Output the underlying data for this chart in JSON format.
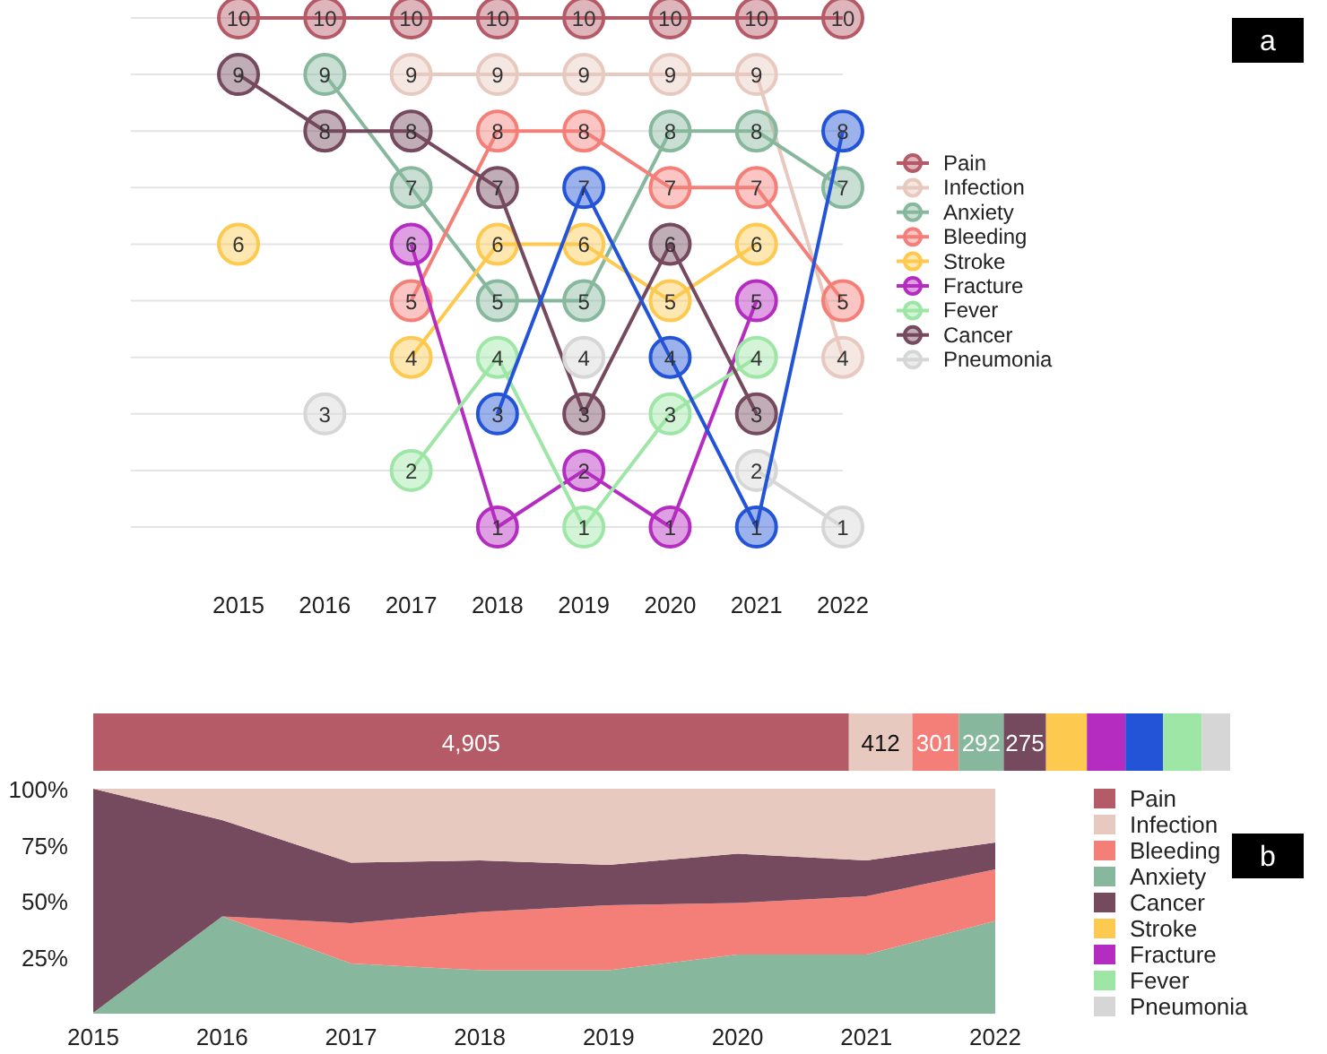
{
  "chart_data": [
    {
      "type": "line",
      "categories": [
        "2015",
        "2016",
        "2017",
        "2018",
        "2019",
        "2020",
        "2021",
        "2022"
      ],
      "yticks": [
        {
          "value": 1,
          "label": null
        },
        {
          "value": 2,
          "label": null
        },
        {
          "value": 3,
          "label": null
        },
        {
          "value": 4,
          "label": null
        },
        {
          "value": 5,
          "label": null
        },
        {
          "value": 6,
          "label": null
        },
        {
          "value": 7,
          "label": null
        },
        {
          "value": 8,
          "label": null
        },
        {
          "value": 9,
          "label": null
        },
        {
          "value": 10,
          "label": null
        }
      ],
      "grid": "y",
      "tick_labels": "x",
      "marker": "circle",
      "data_labels": true,
      "legend": "right",
      "annotations": [
        "a"
      ],
      "series": [
        {
          "name": "Pain",
          "color": "#b55a67",
          "values": [
            10,
            10,
            10,
            10,
            10,
            10,
            10,
            10
          ]
        },
        {
          "name": "Infection",
          "color": "#e8c9bf",
          "values": [
            null,
            null,
            9,
            9,
            9,
            9,
            9,
            4
          ]
        },
        {
          "name": "Anxiety",
          "color": "#87b89d",
          "values": [
            null,
            9,
            7,
            5,
            5,
            8,
            8,
            7
          ]
        },
        {
          "name": "Bleeding",
          "color": "#f47f78",
          "values": [
            null,
            null,
            5,
            8,
            8,
            7,
            7,
            5
          ]
        },
        {
          "name": "Stroke",
          "color": "#fdc94f",
          "values": [
            6,
            null,
            4,
            6,
            6,
            5,
            6,
            null
          ]
        },
        {
          "name": "Fracture",
          "color": "#b52cc0",
          "values": [
            null,
            null,
            6,
            1,
            2,
            1,
            5,
            null
          ]
        },
        {
          "name": "Fever",
          "color": "#9ee6a6",
          "values": [
            null,
            null,
            2,
            4,
            1,
            3,
            4,
            null
          ]
        },
        {
          "name": "Cancer",
          "color": "#764a5e",
          "values": [
            9,
            8,
            8,
            7,
            3,
            6,
            3,
            null
          ]
        },
        {
          "name": "Pneumonia",
          "color": "#d6d6d6",
          "values": [
            null,
            3,
            null,
            null,
            4,
            null,
            2,
            1
          ]
        },
        {
          "color": "#2354d8",
          "values": [
            null,
            null,
            null,
            3,
            7,
            4,
            1,
            8
          ]
        }
      ]
    },
    {
      "type": "bar",
      "orientation": "horizontal",
      "stacked": true,
      "categories": [
        null
      ],
      "tick_labels": false,
      "legend": "bottom right",
      "series": [
        {
          "name": "Pain",
          "color": "#b55a67",
          "values": [
            4905
          ],
          "value_labels": [
            "4,905"
          ]
        },
        {
          "name": "Infection",
          "color": "#e8c9bf",
          "values": [
            412
          ],
          "value_labels": [
            "412"
          ]
        },
        {
          "name": "Bleeding",
          "color": "#f47f78",
          "values": [
            301
          ],
          "value_labels": [
            "301"
          ]
        },
        {
          "name": "Anxiety",
          "color": "#87b89d",
          "values": [
            292
          ],
          "value_labels": [
            "292"
          ]
        },
        {
          "name": "Cancer",
          "color": "#764a5e",
          "values": [
            275
          ],
          "value_labels": [
            "275"
          ]
        },
        {
          "name": "Stroke",
          "color": "#fdc94f",
          "values": [
            265
          ]
        },
        {
          "name": "Fracture",
          "color": "#b52cc0",
          "values": [
            250
          ]
        },
        {
          "color": "#2354d8",
          "values": [
            245
          ]
        },
        {
          "name": "Fever",
          "color": "#9ee6a6",
          "values": [
            250
          ]
        },
        {
          "name": "Pneumonia",
          "color": "#d6d6d6",
          "values": [
            185
          ]
        }
      ]
    },
    {
      "type": "area",
      "stacked": true,
      "categories": [
        "2015",
        "2016",
        "2017",
        "2018",
        "2019",
        "2020",
        "2021",
        "2022"
      ],
      "ylim": [
        0,
        100
      ],
      "yticks": [
        {
          "value": 25,
          "label": "25%"
        },
        {
          "value": 50,
          "label": "50%"
        },
        {
          "value": 75,
          "label": "75%"
        },
        {
          "value": 100,
          "label": "100%"
        }
      ],
      "annotations": [
        "b"
      ],
      "series": [
        {
          "color": "#87b89d",
          "values": [
            0,
            43,
            22,
            19,
            19,
            26,
            26,
            41
          ]
        },
        {
          "color": "#f47f78",
          "values": [
            0,
            0,
            18,
            26,
            29,
            23,
            26,
            23
          ]
        },
        {
          "color": "#764a5e",
          "values": [
            100,
            43,
            27,
            23,
            18,
            22,
            16,
            12
          ]
        },
        {
          "color": "#e8c9bf",
          "values": [
            0,
            14,
            33,
            32,
            34,
            29,
            32,
            24
          ]
        }
      ]
    }
  ]
}
